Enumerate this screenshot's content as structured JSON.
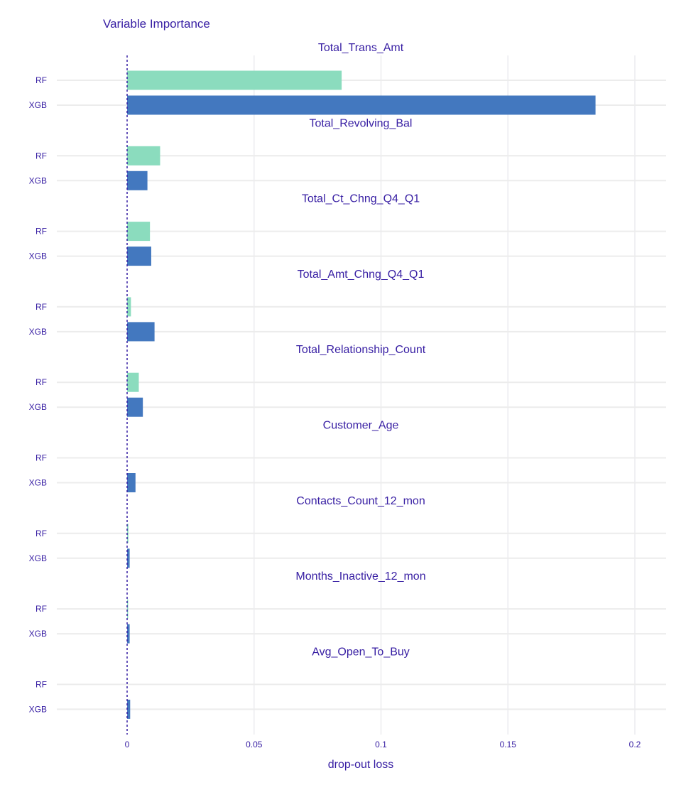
{
  "chart_data": {
    "type": "bar",
    "orientation": "horizontal",
    "title": "Variable Importance",
    "xlabel": "drop-out loss",
    "ylabel": "",
    "xlim": [
      -0.028,
      0.212
    ],
    "xticks": [
      "0",
      "0.05",
      "0.1",
      "0.15",
      "0.2"
    ],
    "xtick_values": [
      0,
      0.05,
      0.1,
      0.15,
      0.2
    ],
    "baseline": 0,
    "grid": true,
    "models": [
      "RF",
      "XGB"
    ],
    "colors": {
      "RF": "#8bdcbe",
      "XGB": "#4378bf",
      "baseline": "#371ea3",
      "text": "#371ea3"
    },
    "variables": [
      {
        "name": "Total_Trans_Amt",
        "RF": 0.0845,
        "XGB": 0.1845
      },
      {
        "name": "Total_Revolving_Bal",
        "RF": 0.013,
        "XGB": 0.008
      },
      {
        "name": "Total_Ct_Chng_Q4_Q1",
        "RF": 0.009,
        "XGB": 0.0095
      },
      {
        "name": "Total_Amt_Chng_Q4_Q1",
        "RF": 0.0015,
        "XGB": 0.0108
      },
      {
        "name": "Total_Relationship_Count",
        "RF": 0.0046,
        "XGB": 0.0062
      },
      {
        "name": "Customer_Age",
        "RF": 0.0,
        "XGB": 0.0033
      },
      {
        "name": "Contacts_Count_12_mon",
        "RF": 0.0005,
        "XGB": 0.001
      },
      {
        "name": "Months_Inactive_12_mon",
        "RF": 0.0004,
        "XGB": 0.001
      },
      {
        "name": "Avg_Open_To_Buy",
        "RF": 0.0,
        "XGB": 0.0012
      }
    ]
  }
}
